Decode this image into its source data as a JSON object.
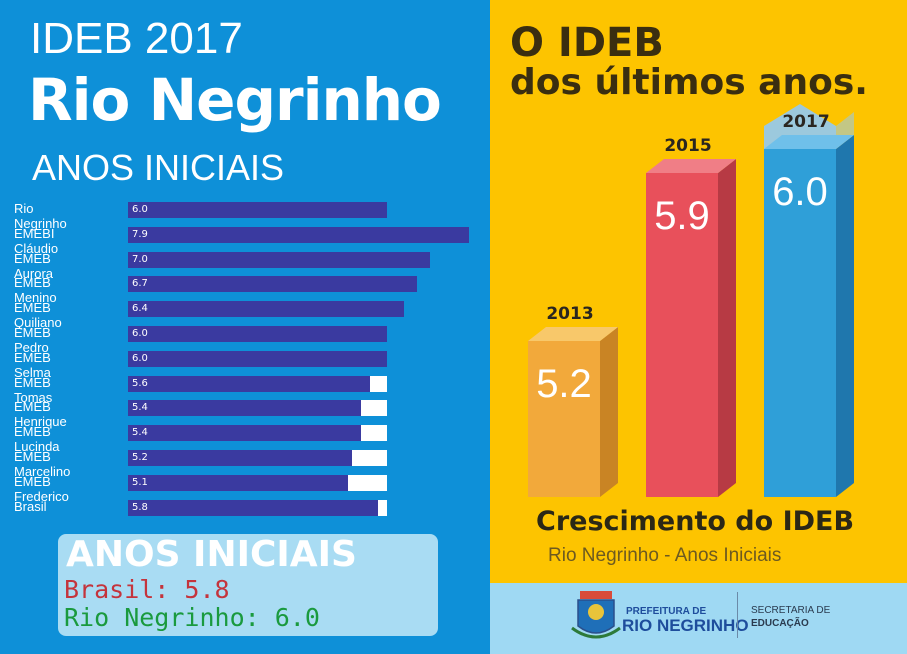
{
  "header": {
    "line1": "IDEB 2017",
    "line2": "Rio Negrinho",
    "line3": "ANOS INICIAIS"
  },
  "right": {
    "title1": "O IDEB",
    "title2": "dos últimos anos.",
    "caption": "Crescimento do IDEB",
    "subcaption": "Rio Negrinho - Anos Iniciais"
  },
  "summary": {
    "title": "ANOS INICIAIS",
    "brasil": "Brasil: 5.8",
    "rio": "Rio Negrinho: 6.0"
  },
  "footer": {
    "pref1": "PREFEITURA DE",
    "pref2": "RIO NEGRINHO",
    "sec1": "SECRETARIA DE",
    "sec2": "EDUCAÇÃO"
  },
  "colors": {
    "left_bg": "#0e90d8",
    "right_bg": "#fdc400",
    "bar": "#3a3aa0",
    "c2013": "#f2a93b",
    "c2015": "#e8505b",
    "c2017": "#2f9fd8"
  },
  "chart_data": [
    {
      "type": "bar",
      "orientation": "horizontal",
      "title": "IDEB 2017 Rio Negrinho - ANOS INICIAIS",
      "categories": [
        "Rio Negrinho",
        "EMEBI Cláudio",
        "EMEB Aurora",
        "EMEB Menino",
        "EMEB Quiliano",
        "EMEB Pedro",
        "EMEB Selma",
        "EMEB Tomas",
        "EMEB Henrique",
        "EMEB Lucinda",
        "EMEB Marcelino",
        "EMEB Frederico",
        "Brasil"
      ],
      "values": [
        6.0,
        7.9,
        7.0,
        6.7,
        6.4,
        6.0,
        6.0,
        5.6,
        5.4,
        5.4,
        5.2,
        5.1,
        5.8
      ],
      "labels": [
        "6.0",
        "7.9",
        "7.0",
        "6.7",
        "6.4",
        "6.0",
        "6.0",
        "5.6",
        "5.4",
        "5.4",
        "5.2",
        "5.1",
        "5.8"
      ],
      "reference": 6.0,
      "xlim": [
        0,
        7.9
      ]
    },
    {
      "type": "bar",
      "title": "O IDEB dos últimos anos.",
      "categories": [
        "2013",
        "2015",
        "2017"
      ],
      "values": [
        5.2,
        5.9,
        6.0
      ],
      "labels": [
        "5.2",
        "5.9",
        "6.0"
      ],
      "xlabel": "Crescimento do IDEB",
      "ylabel": "Rio Negrinho - Anos Iniciais"
    }
  ]
}
